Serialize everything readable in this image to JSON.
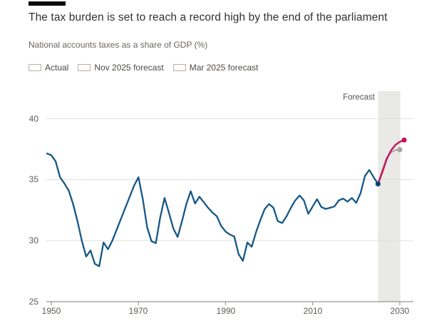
{
  "header": {
    "title": "The tax burden is set to reach a record high by the end of the parliament",
    "subtitle": "National accounts taxes as a share of GDP (%)"
  },
  "legend": {
    "items": [
      {
        "label": "Actual",
        "swatch": "outlined-box"
      },
      {
        "label": "Nov 2025 forecast",
        "swatch": "outlined-box"
      },
      {
        "label": "Mar 2025 forecast",
        "swatch": "outlined-box"
      }
    ]
  },
  "axes": {
    "y_labels": [
      "40",
      "35",
      "30",
      "25"
    ],
    "x_labels": [
      "1950",
      "1970",
      "1990",
      "2010",
      "2030"
    ],
    "forecast_label": "Forecast"
  },
  "colors": {
    "actual_line": "#155787",
    "actual_dot": "#0e4472",
    "nov_forecast_line": "#c2155c",
    "nov_forecast_dot": "#c2155c",
    "mar_forecast_line": "#b0a9a1",
    "mar_forecast_dot": "#a9a29b",
    "forecast_band": "#e9e9e6",
    "gridline": "#e3dfda",
    "axis": "#9b958e",
    "brand_bar": "#0d0d0d"
  },
  "chart_data": {
    "type": "line",
    "title": "The tax burden is set to reach a record high by the end of the parliament",
    "subtitle": "National accounts taxes as a share of GDP (%)",
    "ylabel": "National accounts taxes as a share of GDP (%)",
    "xlim": [
      1948.9,
      2031.2
    ],
    "ylim": [
      25,
      42.3
    ],
    "y_ticks": [
      25,
      30,
      35,
      40
    ],
    "y_gridlines": [
      30,
      35,
      40
    ],
    "x_ticks": [
      1950,
      1970,
      1990,
      2010,
      2030
    ],
    "grid": "horizontal-only",
    "legend_position": "top-left",
    "annotations": [
      {
        "text": "Forecast",
        "position": "above-forecast-band"
      }
    ],
    "forecast_band": {
      "from_year": 2025,
      "to_year": 2030.15
    },
    "series": [
      {
        "name": "Actual",
        "color": "#155787",
        "dot_color": "#0e4472",
        "stroke_width": 2.3,
        "end_dot": true,
        "points": [
          [
            1949,
            37.15
          ],
          [
            1950,
            37.0
          ],
          [
            1951,
            36.5
          ],
          [
            1952,
            35.2
          ],
          [
            1953,
            34.7
          ],
          [
            1954,
            34.1
          ],
          [
            1955,
            33.0
          ],
          [
            1956,
            31.6
          ],
          [
            1957,
            30.0
          ],
          [
            1958,
            28.7
          ],
          [
            1959,
            29.2
          ],
          [
            1960,
            28.1
          ],
          [
            1961,
            27.9
          ],
          [
            1962,
            29.85
          ],
          [
            1963,
            29.3
          ],
          [
            1964,
            30.0
          ],
          [
            1965,
            30.9
          ],
          [
            1966,
            31.8
          ],
          [
            1967,
            32.7
          ],
          [
            1968,
            33.6
          ],
          [
            1969,
            34.5
          ],
          [
            1970,
            35.2
          ],
          [
            1971,
            33.4
          ],
          [
            1972,
            31.1
          ],
          [
            1973,
            29.95
          ],
          [
            1974,
            29.8
          ],
          [
            1975,
            31.9
          ],
          [
            1976,
            33.5
          ],
          [
            1977,
            32.3
          ],
          [
            1978,
            31.0
          ],
          [
            1979,
            30.3
          ],
          [
            1980,
            31.6
          ],
          [
            1981,
            33.0
          ],
          [
            1982,
            34.05
          ],
          [
            1983,
            33.05
          ],
          [
            1984,
            33.6
          ],
          [
            1985,
            33.15
          ],
          [
            1986,
            32.7
          ],
          [
            1987,
            32.3
          ],
          [
            1988,
            32.0
          ],
          [
            1989,
            31.2
          ],
          [
            1990,
            30.75
          ],
          [
            1991,
            30.5
          ],
          [
            1992,
            30.35
          ],
          [
            1993,
            28.9
          ],
          [
            1994,
            28.35
          ],
          [
            1995,
            29.85
          ],
          [
            1996,
            29.5
          ],
          [
            1997,
            30.7
          ],
          [
            1998,
            31.7
          ],
          [
            1999,
            32.6
          ],
          [
            2000,
            33.0
          ],
          [
            2001,
            32.7
          ],
          [
            2002,
            31.6
          ],
          [
            2003,
            31.45
          ],
          [
            2004,
            32.0
          ],
          [
            2005,
            32.7
          ],
          [
            2006,
            33.3
          ],
          [
            2007,
            33.7
          ],
          [
            2008,
            33.3
          ],
          [
            2009,
            32.2
          ],
          [
            2010,
            32.8
          ],
          [
            2011,
            33.4
          ],
          [
            2012,
            32.75
          ],
          [
            2013,
            32.6
          ],
          [
            2014,
            32.7
          ],
          [
            2015,
            32.8
          ],
          [
            2016,
            33.3
          ],
          [
            2017,
            33.45
          ],
          [
            2018,
            33.2
          ],
          [
            2019,
            33.5
          ],
          [
            2020,
            33.1
          ],
          [
            2021,
            33.9
          ],
          [
            2022,
            35.3
          ],
          [
            2023,
            35.8
          ],
          [
            2024,
            35.2
          ],
          [
            2025,
            34.65
          ]
        ]
      },
      {
        "name": "Nov 2025 forecast",
        "color": "#c2155c",
        "dot_color": "#c2155c",
        "stroke_width": 2.4,
        "end_dot": true,
        "points": [
          [
            2025,
            34.65
          ],
          [
            2026,
            35.6
          ],
          [
            2027,
            36.7
          ],
          [
            2028,
            37.4
          ],
          [
            2029,
            37.85
          ],
          [
            2030,
            38.1
          ],
          [
            2031,
            38.25
          ]
        ]
      },
      {
        "name": "Mar 2025 forecast",
        "color": "#b0a9a1",
        "dot_color": "#a9a29b",
        "stroke_width": 2.2,
        "end_dot": true,
        "points": [
          [
            2025,
            34.65
          ],
          [
            2026,
            35.8
          ],
          [
            2027,
            36.8
          ],
          [
            2028,
            37.25
          ],
          [
            2029,
            37.42
          ],
          [
            2030,
            37.45
          ]
        ]
      }
    ]
  }
}
